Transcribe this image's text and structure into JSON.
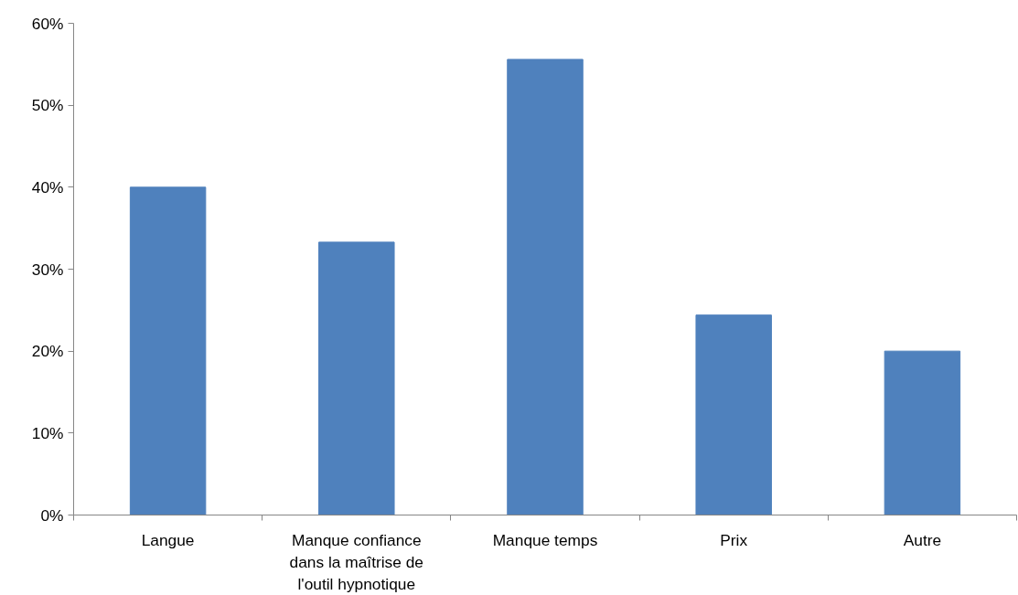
{
  "chart_data": {
    "type": "bar",
    "categories": [
      "Langue",
      "Manque confiance dans la maîtrise de l'outil hypnotique",
      "Manque temps",
      "Prix",
      "Autre"
    ],
    "values": [
      40,
      33.3,
      55.6,
      24.4,
      20
    ],
    "color": "#4f81bd",
    "ylim": [
      0,
      60
    ],
    "yticks": [
      {
        "value": 0,
        "label": "0%"
      },
      {
        "value": 10,
        "label": "10%"
      },
      {
        "value": 20,
        "label": "20%"
      },
      {
        "value": 30,
        "label": "30%"
      },
      {
        "value": 40,
        "label": "40%"
      },
      {
        "value": 50,
        "label": "50%"
      },
      {
        "value": 60,
        "label": "60%"
      }
    ],
    "grid": false
  }
}
